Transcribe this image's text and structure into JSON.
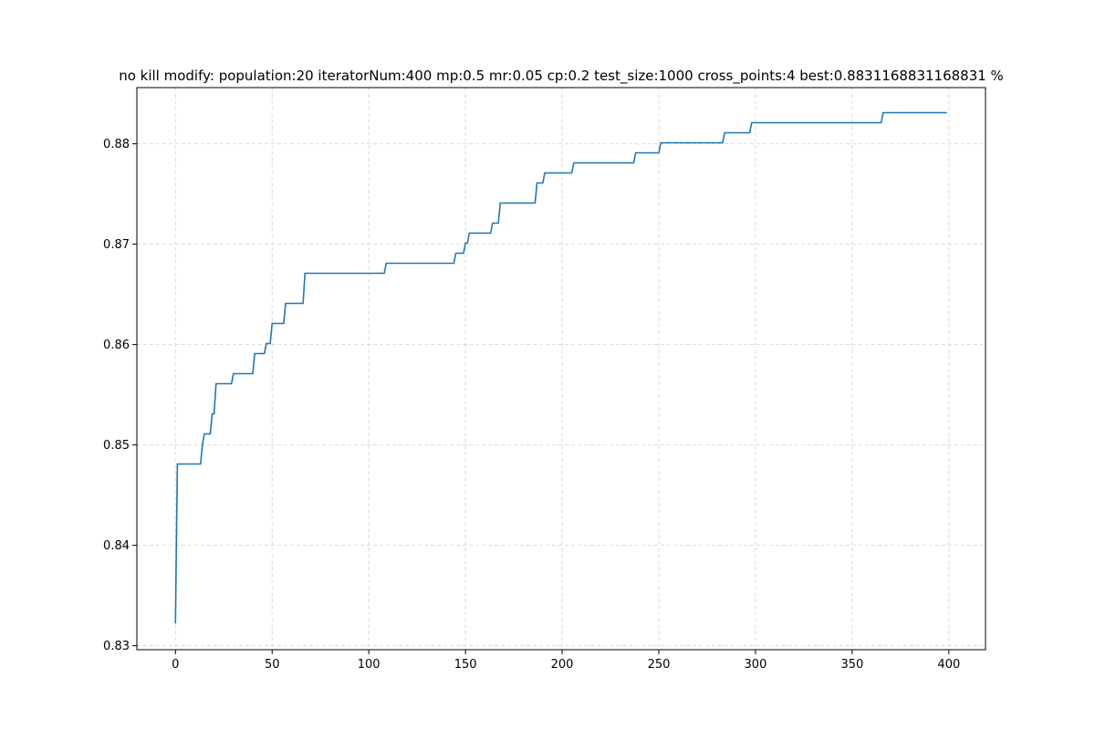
{
  "chart_data": {
    "type": "line",
    "title": "no kill modify: population:20 iteratorNum:400 mp:0.5 mr:0.05 cp:0.2 test_size:1000 cross_points:4 best:0.8831168831168831 %",
    "xlabel": "",
    "ylabel": "",
    "xlim": [
      -19.95,
      418.95
    ],
    "ylim": [
      0.8296,
      0.8856
    ],
    "grid": true,
    "grid_style": "dashed",
    "line_color": "#1f77b4",
    "x_ticks": [
      0,
      50,
      100,
      150,
      200,
      250,
      300,
      350,
      400
    ],
    "x_tick_labels": [
      "0",
      "50",
      "100",
      "150",
      "200",
      "250",
      "300",
      "350",
      "400"
    ],
    "y_ticks": [
      0.83,
      0.84,
      0.85,
      0.86,
      0.87,
      0.88
    ],
    "y_tick_labels": [
      "0.83",
      "0.84",
      "0.85",
      "0.86",
      "0.87",
      "0.88"
    ],
    "series": [
      {
        "x": [
          0,
          1,
          13,
          14,
          15,
          18,
          19,
          20,
          21,
          29,
          30,
          40,
          41,
          46,
          47,
          49,
          50,
          56,
          57,
          66,
          67,
          108,
          109,
          144,
          145,
          149,
          150,
          151,
          152,
          163,
          164,
          167,
          168,
          186,
          187,
          190,
          191,
          205,
          206,
          237,
          238,
          250,
          251,
          283,
          284,
          297,
          298,
          365,
          366,
          399
        ],
        "y": [
          0.8322,
          0.8481,
          0.8481,
          0.8501,
          0.8511,
          0.8511,
          0.8531,
          0.8531,
          0.8561,
          0.8561,
          0.8571,
          0.8571,
          0.8591,
          0.8591,
          0.8601,
          0.8601,
          0.8621,
          0.8621,
          0.8641,
          0.8641,
          0.8671,
          0.8671,
          0.8681,
          0.8681,
          0.8691,
          0.8691,
          0.8701,
          0.8701,
          0.8711,
          0.8711,
          0.8721,
          0.8721,
          0.8741,
          0.8741,
          0.8761,
          0.8761,
          0.8771,
          0.8771,
          0.8781,
          0.8781,
          0.8791,
          0.8791,
          0.8801,
          0.8801,
          0.8811,
          0.8811,
          0.8821,
          0.8821,
          0.8831,
          0.8831
        ]
      }
    ]
  }
}
